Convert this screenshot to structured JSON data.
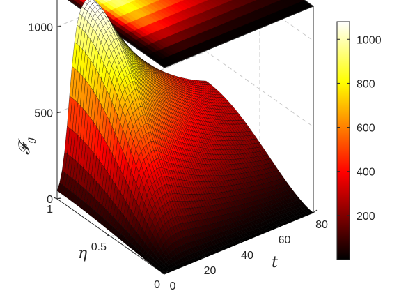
{
  "chart_data": {
    "type": "surface",
    "title": "",
    "xlabel": "t",
    "ylabel": "η",
    "zlabel": "𝓕",
    "zlabel_sub": "g",
    "xlim": [
      0,
      80
    ],
    "ylim": [
      0,
      1
    ],
    "zlim": [
      0,
      1200
    ],
    "x_ticks": [
      "0",
      "20",
      "40",
      "60",
      "80"
    ],
    "y_ticks": [
      "0",
      "0.5",
      "1"
    ],
    "z_ticks": [
      "0",
      "500",
      "1000"
    ],
    "colorbar": {
      "min": 0,
      "max": 1080,
      "colormap": "hot",
      "ticks": [
        "200",
        "400",
        "600",
        "800",
        "1000"
      ]
    },
    "top_projection": true,
    "grid": true,
    "surface_profile": {
      "description_points_t": [
        0,
        5,
        10,
        15,
        20,
        30,
        40,
        50,
        60,
        70,
        80
      ],
      "peak_eta1": [
        20,
        500,
        920,
        1060,
        1070,
        940,
        720,
        500,
        330,
        220,
        150
      ],
      "eta0": [
        0,
        0,
        0,
        0,
        0,
        0,
        0,
        0,
        0,
        0,
        0
      ]
    }
  }
}
